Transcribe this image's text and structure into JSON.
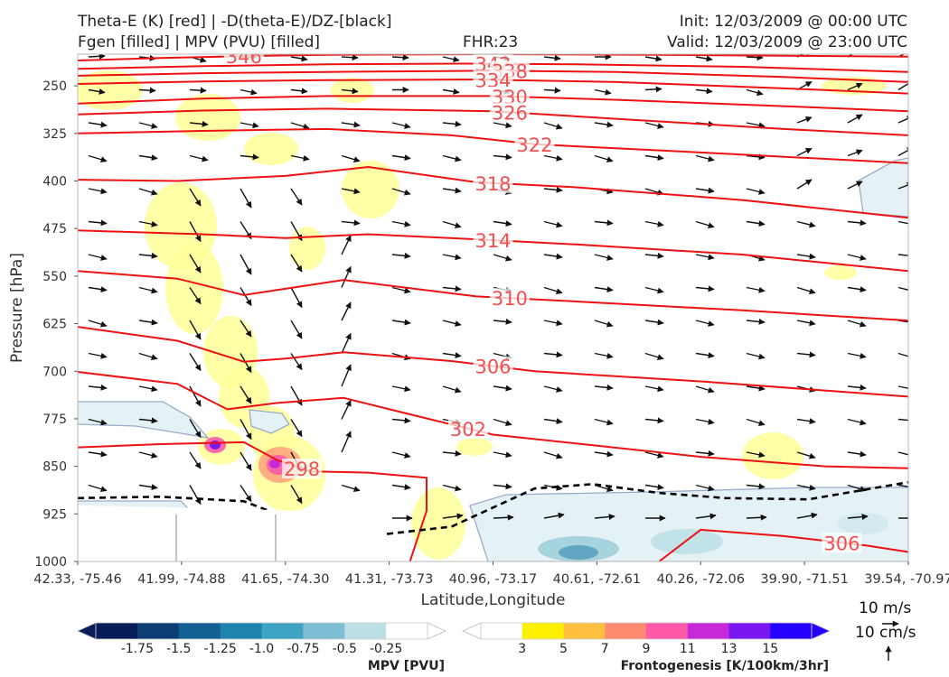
{
  "header": {
    "title_line1": "Theta-E (K) [red] | -D(theta-E)/DZ-[black]",
    "title_line2": "Fgen [filled] | MPV (PVU) [filled]",
    "fhr": "FHR:23",
    "init": "Init: 12/03/2009 @ 00:00 UTC",
    "valid": "Valid: 12/03/2009 @ 23:00 UTC"
  },
  "chart_data": {
    "type": "cross-section",
    "xlabel": "Latitude,Longitude",
    "ylabel": "Pressure [hPa]",
    "ylim": [
      1000,
      200
    ],
    "y_ticks": [
      250,
      325,
      400,
      475,
      550,
      625,
      700,
      775,
      850,
      925,
      1000
    ],
    "x_ticks": [
      "42.33, -75.46",
      "41.99, -74.88",
      "41.65, -74.30",
      "41.31, -73.73",
      "40.96, -73.17",
      "40.61, -72.61",
      "40.26, -72.06",
      "39.90, -71.51",
      "39.54, -70.97"
    ],
    "theta_e_isotherms": [
      {
        "value": 346,
        "label": "346",
        "pts": [
          [
            0.0,
            210
          ],
          [
            0.1,
            206
          ],
          [
            0.2,
            203
          ],
          [
            0.3,
            201
          ],
          [
            0.5,
            200
          ],
          [
            0.7,
            201
          ],
          [
            1.0,
            204
          ]
        ]
      },
      {
        "value": 342,
        "label": "342",
        "pts": [
          [
            0.0,
            223
          ],
          [
            0.15,
            219
          ],
          [
            0.3,
            216
          ],
          [
            0.47,
            215
          ],
          [
            0.6,
            216
          ],
          [
            0.8,
            220
          ],
          [
            1.0,
            228
          ]
        ]
      },
      {
        "value": 338,
        "label": "338",
        "pts": [
          [
            0.0,
            234
          ],
          [
            0.15,
            230
          ],
          [
            0.3,
            228
          ],
          [
            0.5,
            226
          ],
          [
            0.65,
            228
          ],
          [
            0.85,
            236
          ],
          [
            1.0,
            244
          ]
        ]
      },
      {
        "value": 334,
        "label": "334",
        "pts": [
          [
            0.0,
            247
          ],
          [
            0.15,
            243
          ],
          [
            0.3,
            241
          ],
          [
            0.48,
            240
          ],
          [
            0.65,
            244
          ],
          [
            0.85,
            254
          ],
          [
            1.0,
            262
          ]
        ]
      },
      {
        "value": 330,
        "label": "330",
        "pts": [
          [
            0.0,
            278
          ],
          [
            0.15,
            270
          ],
          [
            0.3,
            266
          ],
          [
            0.5,
            266
          ],
          [
            0.65,
            272
          ],
          [
            0.85,
            282
          ],
          [
            1.0,
            290
          ]
        ]
      },
      {
        "value": 326,
        "label": "326",
        "pts": [
          [
            0.0,
            295
          ],
          [
            0.15,
            289
          ],
          [
            0.3,
            286
          ],
          [
            0.5,
            290
          ],
          [
            0.65,
            302
          ],
          [
            0.85,
            318
          ],
          [
            1.0,
            328
          ]
        ]
      },
      {
        "value": 322,
        "label": "322",
        "pts": [
          [
            0.0,
            325
          ],
          [
            0.15,
            321
          ],
          [
            0.3,
            318
          ],
          [
            0.45,
            328
          ],
          [
            0.55,
            342
          ],
          [
            0.75,
            355
          ],
          [
            1.0,
            372
          ]
        ]
      },
      {
        "value": 318,
        "label": "318",
        "pts": [
          [
            0.0,
            398
          ],
          [
            0.12,
            400
          ],
          [
            0.25,
            392
          ],
          [
            0.35,
            378
          ],
          [
            0.48,
            402
          ],
          [
            0.6,
            410
          ],
          [
            0.8,
            430
          ],
          [
            1.0,
            458
          ]
        ]
      },
      {
        "value": 314,
        "label": "314",
        "pts": [
          [
            0.0,
            478
          ],
          [
            0.15,
            484
          ],
          [
            0.25,
            490
          ],
          [
            0.35,
            484
          ],
          [
            0.48,
            492
          ],
          [
            0.6,
            500
          ],
          [
            0.8,
            516
          ],
          [
            1.0,
            542
          ]
        ]
      },
      {
        "value": 310,
        "label": "310",
        "pts": [
          [
            0.0,
            542
          ],
          [
            0.12,
            554
          ],
          [
            0.2,
            580
          ],
          [
            0.25,
            570
          ],
          [
            0.32,
            556
          ],
          [
            0.48,
            582
          ],
          [
            0.6,
            590
          ],
          [
            0.8,
            604
          ],
          [
            1.0,
            620
          ]
        ]
      },
      {
        "value": 306,
        "label": "306",
        "pts": [
          [
            0.0,
            630
          ],
          [
            0.12,
            652
          ],
          [
            0.2,
            685
          ],
          [
            0.25,
            680
          ],
          [
            0.32,
            670
          ],
          [
            0.45,
            684
          ],
          [
            0.55,
            700
          ],
          [
            0.75,
            716
          ],
          [
            1.0,
            740
          ]
        ]
      },
      {
        "value": 302,
        "label": "302",
        "pts": [
          [
            0.0,
            701
          ],
          [
            0.12,
            720
          ],
          [
            0.18,
            760
          ],
          [
            0.24,
            750
          ],
          [
            0.32,
            742
          ],
          [
            0.4,
            768
          ],
          [
            0.5,
            800
          ],
          [
            0.6,
            814
          ],
          [
            0.75,
            835
          ],
          [
            0.9,
            850
          ],
          [
            1.0,
            853
          ]
        ]
      },
      {
        "value": 298,
        "label": "298",
        "pts": [
          [
            0.0,
            820
          ],
          [
            0.1,
            815
          ],
          [
            0.2,
            812
          ],
          [
            0.24,
            840
          ],
          [
            0.28,
            858
          ],
          [
            0.35,
            860
          ],
          [
            0.42,
            868
          ],
          [
            0.42,
            920
          ],
          [
            0.4,
            1000
          ]
        ]
      },
      {
        "value": 306,
        "label": "306",
        "pts": [
          [
            0.7,
            1000
          ],
          [
            0.75,
            950
          ],
          [
            0.85,
            960
          ],
          [
            0.95,
            975
          ],
          [
            1.0,
            985
          ]
        ]
      }
    ],
    "zero_stability_line": [
      [
        0.0,
        900
      ],
      [
        0.1,
        898
      ],
      [
        0.2,
        905
      ],
      [
        0.25,
        930
      ],
      [
        0.35,
        960
      ],
      [
        0.45,
        945
      ],
      [
        0.55,
        885
      ],
      [
        0.62,
        878
      ],
      [
        0.7,
        892
      ],
      [
        0.78,
        900
      ],
      [
        0.88,
        902
      ],
      [
        1.0,
        875
      ]
    ],
    "fgen_colorbar": {
      "label": "Frontogenesis [K/100km/3hr]",
      "ticks": [
        "3",
        "5",
        "7",
        "9",
        "11",
        "13",
        "15"
      ],
      "colors": [
        "#ffffff",
        "#fff000",
        "#ffc040",
        "#ff8a70",
        "#ff59a8",
        "#c62ad8",
        "#7a18f2",
        "#2600ff"
      ]
    },
    "mpv_colorbar": {
      "label": "MPV [PVU]",
      "ticks": [
        "-1.75",
        "-1.5",
        "-1.25",
        "-1.0",
        "-0.75",
        "-0.5",
        "-0.25"
      ],
      "colors": [
        "#081d58",
        "#0c3e74",
        "#145f93",
        "#1e84ad",
        "#3fa4c4",
        "#7ebed4",
        "#bcdfe6",
        "#ffffff"
      ]
    },
    "vector_reference": {
      "horizontal": "10 m/s",
      "vertical": "10 cm/s"
    }
  }
}
